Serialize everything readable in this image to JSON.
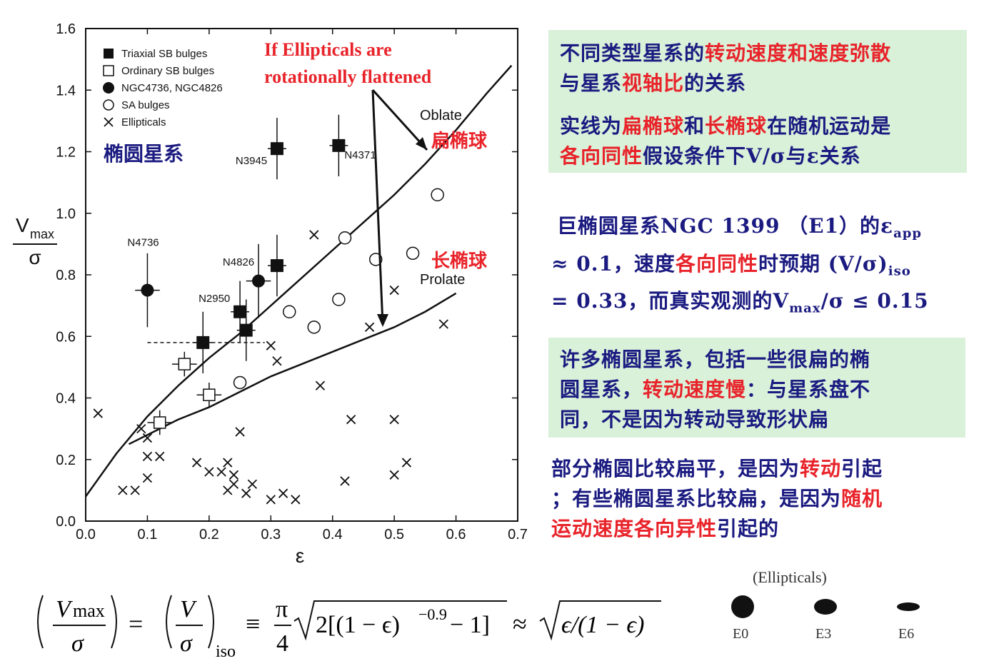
{
  "chart_data": {
    "type": "scatter",
    "xlabel": "ε",
    "ylabel_main": "V",
    "ylabel_sub": "max",
    "ylabel_den": "σ",
    "xlim": [
      0.0,
      0.7
    ],
    "ylim": [
      0.0,
      1.6
    ],
    "x_ticks": [
      "0.0",
      "0.1",
      "0.2",
      "0.3",
      "0.4",
      "0.5",
      "0.6",
      "0.7"
    ],
    "y_ticks": [
      "0.0",
      "0.2",
      "0.4",
      "0.6",
      "0.8",
      "1.0",
      "1.2",
      "1.4",
      "1.6"
    ],
    "legend": {
      "placement": "top-left",
      "entries": [
        "Triaxial SB bulges",
        "Ordinary SB bulges",
        "NGC4736, NGC4826",
        "SA bulges",
        "Ellipticals"
      ]
    },
    "lines": [
      {
        "name": "Oblate",
        "x": [
          0.0,
          0.05,
          0.1,
          0.15,
          0.2,
          0.25,
          0.3,
          0.35,
          0.4,
          0.45,
          0.5,
          0.55,
          0.6,
          0.65,
          0.69
        ],
        "y": [
          0.08,
          0.22,
          0.34,
          0.44,
          0.53,
          0.61,
          0.7,
          0.79,
          0.88,
          0.97,
          1.06,
          1.16,
          1.27,
          1.39,
          1.48
        ]
      },
      {
        "name": "Prolate",
        "x": [
          0.07,
          0.1,
          0.15,
          0.2,
          0.25,
          0.3,
          0.35,
          0.4,
          0.45,
          0.5,
          0.55,
          0.6
        ],
        "y": [
          0.25,
          0.28,
          0.33,
          0.37,
          0.42,
          0.47,
          0.51,
          0.55,
          0.59,
          0.63,
          0.68,
          0.74
        ]
      }
    ],
    "triaxial_sb": [
      {
        "x": 0.31,
        "y": 1.21,
        "label": "N3945"
      },
      {
        "x": 0.41,
        "y": 1.22,
        "label": "N4371"
      },
      {
        "x": 0.31,
        "y": 0.83,
        "label": "N4826"
      },
      {
        "x": 0.25,
        "y": 0.68,
        "label": "N2950"
      },
      {
        "x": 0.26,
        "y": 0.62,
        "label": ""
      },
      {
        "x": 0.19,
        "y": 0.58,
        "label": ""
      }
    ],
    "ordinary_sb": [
      {
        "x": 0.16,
        "y": 0.51
      },
      {
        "x": 0.2,
        "y": 0.41
      },
      {
        "x": 0.12,
        "y": 0.32
      }
    ],
    "ngc_filled_circle": [
      {
        "x": 0.1,
        "y": 0.75,
        "label": "N4736"
      },
      {
        "x": 0.28,
        "y": 0.78,
        "label": ""
      }
    ],
    "sa_bulges": [
      {
        "x": 0.57,
        "y": 1.06
      },
      {
        "x": 0.42,
        "y": 0.92
      },
      {
        "x": 0.47,
        "y": 0.85
      },
      {
        "x": 0.53,
        "y": 0.87
      },
      {
        "x": 0.41,
        "y": 0.72
      },
      {
        "x": 0.33,
        "y": 0.68
      },
      {
        "x": 0.37,
        "y": 0.63
      },
      {
        "x": 0.25,
        "y": 0.45
      }
    ],
    "ellipticals": [
      {
        "x": 0.37,
        "y": 0.93
      },
      {
        "x": 0.5,
        "y": 0.75
      },
      {
        "x": 0.58,
        "y": 0.64
      },
      {
        "x": 0.46,
        "y": 0.63
      },
      {
        "x": 0.3,
        "y": 0.57
      },
      {
        "x": 0.31,
        "y": 0.52
      },
      {
        "x": 0.38,
        "y": 0.44
      },
      {
        "x": 0.43,
        "y": 0.33
      },
      {
        "x": 0.5,
        "y": 0.33
      },
      {
        "x": 0.25,
        "y": 0.29
      },
      {
        "x": 0.52,
        "y": 0.19
      },
      {
        "x": 0.5,
        "y": 0.15
      },
      {
        "x": 0.42,
        "y": 0.13
      },
      {
        "x": 0.02,
        "y": 0.35
      },
      {
        "x": 0.09,
        "y": 0.3
      },
      {
        "x": 0.1,
        "y": 0.27
      },
      {
        "x": 0.1,
        "y": 0.21
      },
      {
        "x": 0.12,
        "y": 0.21
      },
      {
        "x": 0.1,
        "y": 0.14
      },
      {
        "x": 0.06,
        "y": 0.1
      },
      {
        "x": 0.08,
        "y": 0.1
      },
      {
        "x": 0.18,
        "y": 0.19
      },
      {
        "x": 0.2,
        "y": 0.16
      },
      {
        "x": 0.22,
        "y": 0.16
      },
      {
        "x": 0.23,
        "y": 0.19
      },
      {
        "x": 0.24,
        "y": 0.15
      },
      {
        "x": 0.23,
        "y": 0.1
      },
      {
        "x": 0.24,
        "y": 0.12
      },
      {
        "x": 0.26,
        "y": 0.09
      },
      {
        "x": 0.27,
        "y": 0.12
      },
      {
        "x": 0.3,
        "y": 0.07
      },
      {
        "x": 0.32,
        "y": 0.09
      },
      {
        "x": 0.34,
        "y": 0.07
      }
    ]
  },
  "annotations": {
    "elliptical_galaxy": "椭圆星系",
    "if_line1": "If Ellipticals are",
    "if_line2": "rotationally flattened",
    "oblate_en": "Oblate",
    "oblate_cn": "扁椭球",
    "prolate_en": "Prolate",
    "prolate_cn": "长椭球"
  },
  "box1": {
    "line1_a": "不同类型星系的",
    "line1_b": "转动速度和速度弥散",
    "line2_a": "与星系",
    "line2_b": "视轴比",
    "line2_c": "的关系",
    "line3_a": "实线为",
    "line3_b": "扁椭球",
    "line3_c": "和",
    "line3_d": "长椭球",
    "line3_e": "在随机运动是",
    "line4_a": "各向同性",
    "line4_b": "假设条件下V/σ与ε关系"
  },
  "middle": {
    "l1_a": "巨椭圆星系NGC 1399 （E1）的ε",
    "l1_sub": "app",
    "l2_a": "≈ 0.1，速度",
    "l2_b": "各向同性",
    "l2_c": "时预期 (V/σ)",
    "l2_sub": "iso",
    "l3_a": "= 0.33，而真实观测的V",
    "l3_sub": "max",
    "l3_b": "/σ ≤ 0.15"
  },
  "box2": {
    "line1": "许多椭圆星系，包括一些很扁的椭",
    "line2_a": "圆星系，",
    "line2_b": "转动速度慢",
    "line2_c": "：与星系盘不",
    "line3": "同，不是因为转动导致形状扁"
  },
  "bottom_text": {
    "line1_a": "部分椭圆比较扁平，是因为",
    "line1_b": "转动",
    "line1_c": "引起",
    "line2_a": "；有些椭圆星系比较扁，是因为",
    "line2_b": "随机",
    "line3_a": "运动速度各向异性",
    "line3_b": "引起的"
  },
  "formula": {
    "lhs_num": "V",
    "lhs_num_sub": "max",
    "den": "σ",
    "eq1": "=",
    "mid_num": "V",
    "iso": "iso",
    "eq2": "≡",
    "pi": "π",
    "four": "4",
    "rad1": "2[(1 − ϵ)",
    "exp": "−0.9",
    "rad1_end": " − 1]",
    "approx": "≈",
    "rad2": "ϵ/(1 − ϵ)"
  },
  "galaxy_types": {
    "title": "(Ellipticals)",
    "labels": [
      "E0",
      "E3",
      "E6"
    ]
  }
}
